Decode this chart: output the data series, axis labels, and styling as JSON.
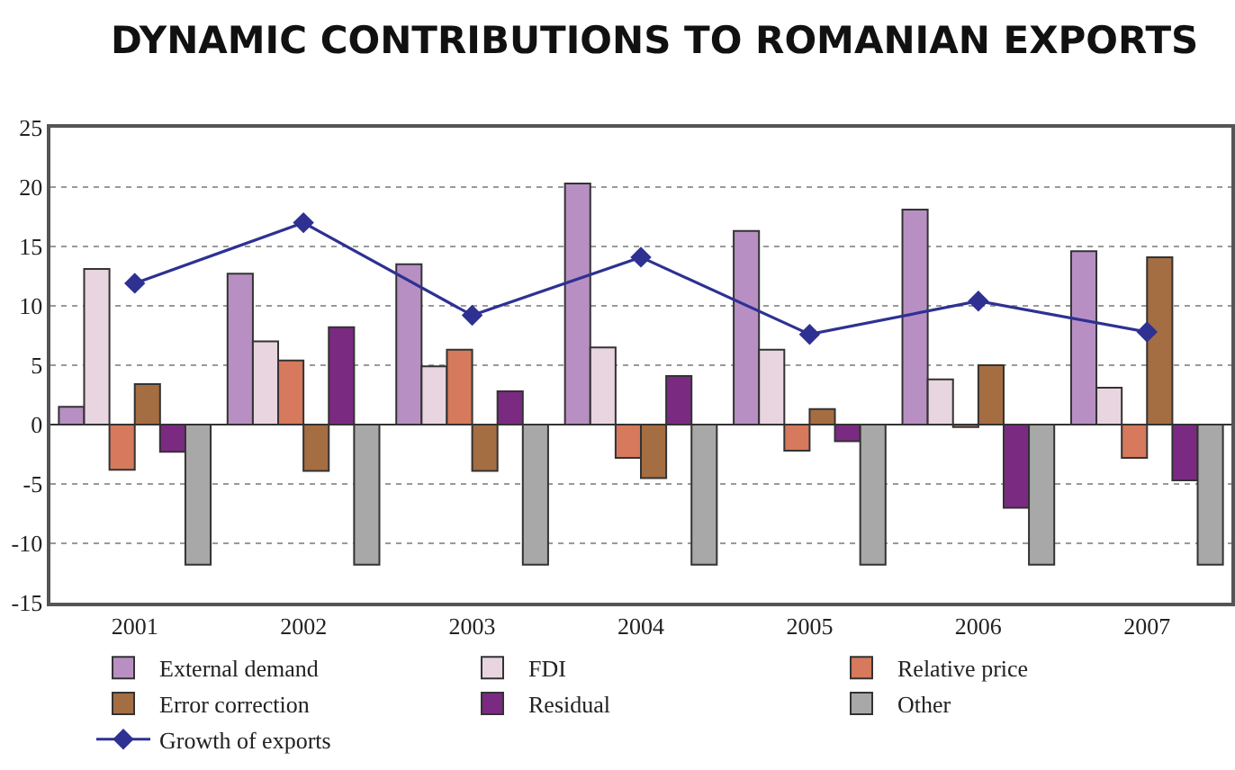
{
  "chart_data": {
    "type": "bar",
    "title": "DYNAMIC CONTRIBUTIONS TO ROMANIAN EXPORTS",
    "categories": [
      "2001",
      "2002",
      "2003",
      "2004",
      "2005",
      "2006",
      "2007"
    ],
    "series": [
      {
        "name": "External demand",
        "color": "#b88fc3",
        "values": [
          1.5,
          12.7,
          13.5,
          20.3,
          16.3,
          18.1,
          14.6
        ]
      },
      {
        "name": "FDI",
        "color": "#e8d5df",
        "values": [
          13.1,
          7.0,
          4.9,
          6.5,
          6.3,
          3.8,
          3.1
        ]
      },
      {
        "name": "Relative price",
        "color": "#d6795c",
        "values": [
          -3.8,
          5.4,
          6.3,
          -2.8,
          -2.2,
          -0.2,
          -2.8
        ]
      },
      {
        "name": "Error correction",
        "color": "#a56d42",
        "values": [
          3.4,
          -3.9,
          -3.9,
          -4.5,
          1.3,
          5.0,
          14.1
        ]
      },
      {
        "name": "Residual",
        "color": "#7b2a82",
        "values": [
          -2.3,
          8.2,
          2.8,
          4.1,
          -1.4,
          -7.0,
          -4.7
        ]
      },
      {
        "name": "Other",
        "color": "#a8a8a8",
        "values": [
          -11.8,
          -11.8,
          -11.8,
          -11.8,
          -11.8,
          -11.8,
          -11.8
        ]
      },
      {
        "name": "Growth of exports",
        "type": "line",
        "color": "#2e3192",
        "marker": "diamond",
        "values": [
          11.9,
          17.0,
          9.2,
          14.1,
          7.6,
          10.4,
          7.8
        ]
      }
    ],
    "ylim": [
      -15,
      25
    ],
    "yticks": [
      -15,
      -10,
      -5,
      0,
      5,
      10,
      15,
      20,
      25
    ],
    "grid": "y",
    "legend": "bottom"
  }
}
